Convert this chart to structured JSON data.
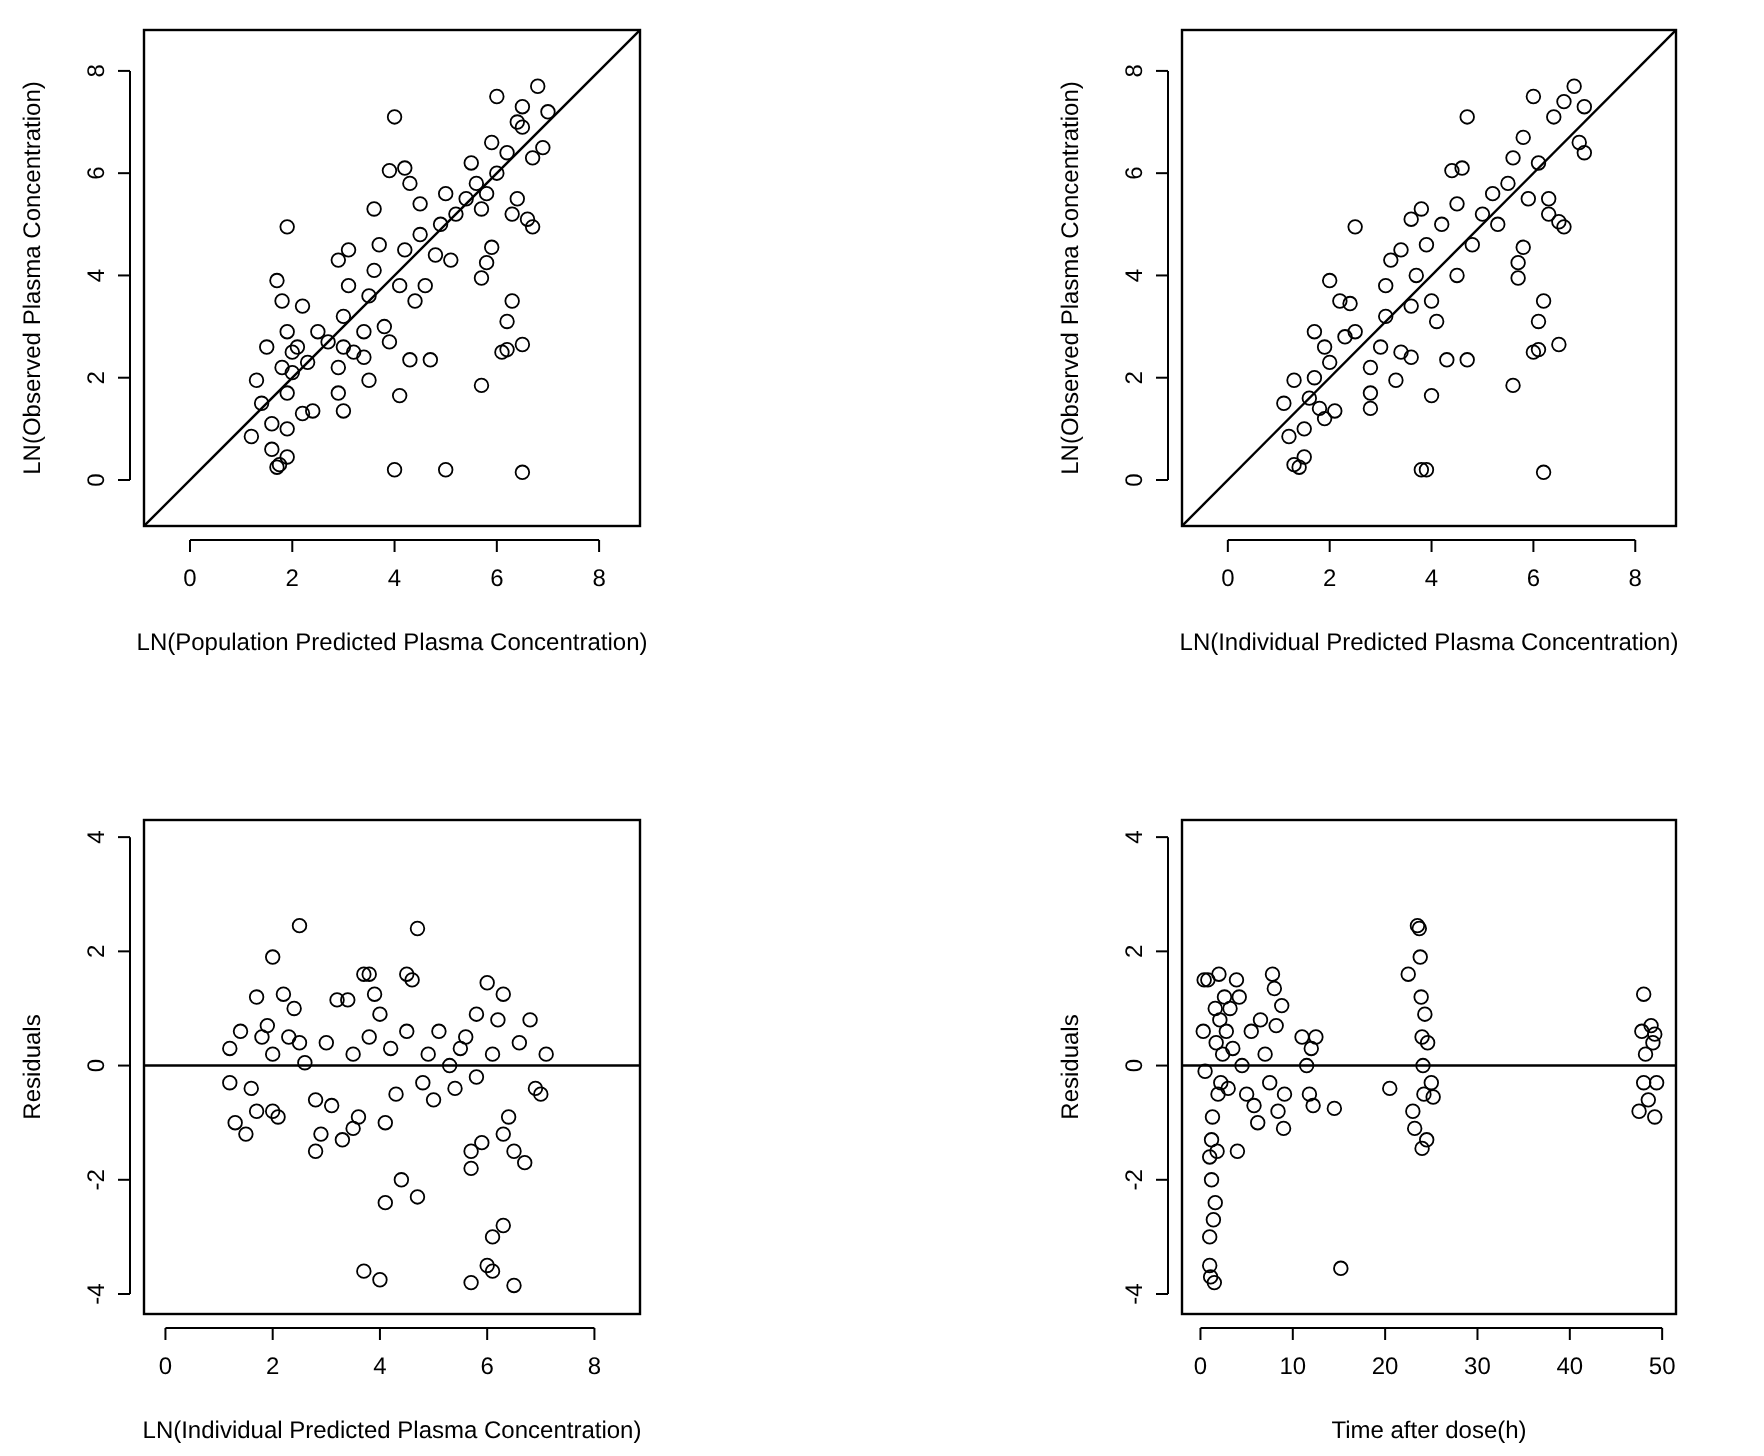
{
  "chart_data": [
    {
      "type": "scatter",
      "xlabel": "LN(Population Predicted Plasma Concentration)",
      "ylabel": "LN(Observed Plasma Concentration)",
      "xlim": [
        -0.9,
        8.8
      ],
      "ylim": [
        -0.9,
        8.8
      ],
      "xticks": [
        0,
        2,
        4,
        6,
        8
      ],
      "yticks": [
        0,
        2,
        4,
        6,
        8
      ],
      "series": [
        {
          "marker": "circle",
          "color": "#000000",
          "x": [
            1.2,
            1.3,
            1.4,
            1.5,
            1.6,
            1.6,
            1.7,
            1.75,
            1.7,
            1.8,
            1.9,
            1.8,
            1.9,
            2.0,
            1.9,
            1.9,
            1.9,
            2.0,
            2.1,
            2.2,
            2.2,
            2.4,
            2.3,
            2.5,
            2.7,
            2.9,
            2.9,
            3.0,
            3.0,
            2.9,
            3.1,
            3.1,
            3.0,
            3.2,
            3.4,
            3.4,
            3.5,
            3.5,
            3.6,
            3.6,
            3.7,
            3.8,
            3.9,
            3.9,
            4.0,
            4.0,
            4.1,
            4.1,
            4.2,
            4.3,
            4.2,
            4.3,
            4.4,
            4.5,
            4.5,
            4.6,
            4.7,
            4.8,
            4.9,
            5.0,
            5.0,
            5.1,
            5.2,
            5.4,
            5.5,
            5.6,
            5.7,
            5.7,
            5.7,
            5.8,
            5.9,
            5.9,
            6.0,
            6.0,
            6.1,
            6.2,
            6.2,
            6.3,
            6.3,
            6.4,
            6.5,
            6.5,
            6.5,
            6.6,
            6.7,
            6.5,
            6.8,
            6.9,
            7.0,
            6.2,
            5.8,
            6.4,
            6.7
          ],
          "values": [
            0.85,
            1.95,
            1.5,
            2.6,
            1.1,
            0.6,
            0.25,
            0.3,
            3.9,
            3.5,
            4.95,
            2.2,
            2.9,
            2.5,
            1.7,
            1.0,
            0.45,
            2.1,
            2.6,
            3.4,
            1.3,
            1.35,
            2.3,
            2.9,
            2.7,
            2.2,
            1.7,
            1.35,
            3.2,
            4.3,
            4.5,
            3.8,
            2.6,
            2.5,
            2.9,
            2.4,
            1.95,
            3.6,
            4.1,
            5.3,
            4.6,
            3.0,
            2.7,
            6.05,
            7.1,
            0.2,
            1.65,
            3.8,
            6.1,
            5.8,
            4.5,
            2.35,
            3.5,
            5.4,
            4.8,
            3.8,
            2.35,
            4.4,
            5.0,
            0.2,
            5.6,
            4.3,
            5.2,
            5.5,
            6.2,
            5.8,
            5.3,
            1.85,
            3.95,
            4.25,
            4.55,
            6.6,
            7.5,
            6.0,
            2.5,
            2.55,
            3.1,
            3.5,
            5.2,
            5.5,
            2.65,
            0.15,
            6.9,
            5.1,
            4.95,
            7.3,
            7.7,
            6.5,
            7.2,
            6.4,
            5.6,
            7.0,
            6.3
          ]
        },
        {
          "type": "line",
          "color": "#000000",
          "x": [
            -0.9,
            8.8
          ],
          "values": [
            -0.9,
            8.8
          ]
        }
      ]
    },
    {
      "type": "scatter",
      "xlabel": "LN(Individual Predicted Plasma Concentration)",
      "ylabel": "LN(Observed Plasma Concentration)",
      "xlim": [
        -0.9,
        8.8
      ],
      "ylim": [
        -0.9,
        8.8
      ],
      "xticks": [
        0,
        2,
        4,
        6,
        8
      ],
      "yticks": [
        0,
        2,
        4,
        6,
        8
      ],
      "series": [
        {
          "marker": "circle",
          "color": "#000000",
          "x": [
            1.1,
            1.2,
            1.3,
            1.3,
            1.4,
            1.5,
            1.5,
            1.6,
            1.7,
            1.7,
            1.8,
            1.9,
            1.9,
            2.0,
            2.0,
            2.1,
            2.2,
            2.4,
            2.5,
            2.3,
            2.5,
            2.8,
            2.8,
            2.8,
            3.0,
            3.1,
            3.1,
            3.2,
            3.3,
            3.4,
            3.4,
            3.6,
            3.6,
            3.7,
            3.6,
            3.8,
            3.8,
            3.9,
            3.9,
            4.0,
            4.0,
            4.1,
            4.2,
            4.3,
            4.4,
            4.5,
            4.5,
            4.6,
            4.7,
            4.7,
            4.8,
            5.0,
            5.2,
            5.3,
            5.5,
            5.6,
            5.7,
            5.7,
            5.8,
            5.6,
            5.8,
            6.0,
            6.1,
            6.0,
            6.1,
            6.2,
            6.2,
            6.3,
            6.3,
            6.5,
            6.5,
            6.6,
            6.4,
            6.8,
            6.9,
            7.0,
            7.0,
            6.1,
            5.9,
            6.6
          ],
          "values": [
            1.5,
            0.85,
            1.95,
            0.3,
            0.25,
            0.45,
            1.0,
            1.6,
            2.0,
            2.9,
            1.4,
            2.6,
            1.2,
            3.9,
            2.3,
            1.35,
            3.5,
            3.45,
            4.95,
            2.8,
            2.9,
            1.4,
            1.7,
            2.2,
            2.6,
            3.2,
            3.8,
            4.3,
            1.95,
            4.5,
            2.5,
            3.4,
            2.4,
            4.0,
            5.1,
            5.3,
            0.2,
            0.2,
            4.6,
            3.5,
            1.65,
            3.1,
            5.0,
            2.35,
            6.05,
            5.4,
            4.0,
            6.1,
            2.35,
            7.1,
            4.6,
            5.2,
            5.6,
            5.0,
            5.8,
            1.85,
            3.95,
            4.25,
            4.55,
            6.3,
            6.7,
            2.5,
            2.55,
            7.5,
            3.1,
            3.5,
            0.15,
            5.2,
            5.5,
            2.65,
            5.05,
            4.95,
            7.1,
            7.7,
            6.6,
            7.3,
            6.4,
            6.2,
            5.5,
            7.4
          ]
        },
        {
          "type": "line",
          "color": "#000000",
          "x": [
            -0.9,
            8.8
          ],
          "values": [
            -0.9,
            8.8
          ]
        }
      ]
    },
    {
      "type": "scatter",
      "xlabel": "LN(Individual Predicted Plasma Concentration)",
      "ylabel": "Residuals",
      "xlim": [
        -0.4,
        8.85
      ],
      "ylim": [
        -4.35,
        4.3
      ],
      "xticks": [
        0,
        2,
        4,
        6,
        8
      ],
      "yticks": [
        -4,
        -2,
        0,
        2,
        4
      ],
      "marker": "circle",
      "ref_lines": [
        {
          "axis": "y",
          "value": 0,
          "color": "#000000"
        }
      ],
      "series": [
        {
          "color": "#000000",
          "x": [
            1.2,
            1.2,
            1.3,
            1.4,
            1.5,
            1.6,
            1.7,
            1.7,
            1.8,
            1.9,
            2.0,
            2.0,
            2.0,
            2.1,
            2.2,
            2.3,
            2.5,
            2.4,
            2.5,
            2.6,
            2.8,
            2.8,
            2.9,
            3.0,
            3.1,
            3.2,
            3.3,
            3.4,
            3.5,
            3.5,
            3.6,
            3.7,
            3.8,
            3.7,
            3.8,
            3.9,
            4.0,
            4.0,
            4.1,
            4.1,
            4.2,
            4.3,
            4.4,
            4.5,
            4.6,
            4.5,
            4.7,
            4.7,
            4.8,
            4.9,
            5.0,
            5.1,
            5.3,
            5.4,
            5.6,
            5.7,
            5.7,
            5.7,
            5.8,
            5.9,
            6.0,
            6.0,
            6.1,
            6.1,
            6.2,
            6.3,
            6.3,
            6.3,
            6.4,
            6.5,
            6.5,
            6.6,
            6.7,
            6.8,
            6.9,
            7.0,
            7.1,
            5.8,
            6.1,
            5.5
          ],
          "values": [
            0.3,
            -0.3,
            -1.0,
            0.6,
            -1.2,
            -0.4,
            -0.8,
            1.2,
            0.5,
            0.7,
            1.9,
            0.2,
            -0.8,
            -0.9,
            1.25,
            0.5,
            2.45,
            1.0,
            0.4,
            0.05,
            -0.6,
            -1.5,
            -1.2,
            0.4,
            -0.7,
            1.15,
            -1.3,
            1.15,
            -1.1,
            0.2,
            -0.9,
            1.6,
            1.6,
            -3.6,
            0.5,
            1.25,
            -3.75,
            0.9,
            -1.0,
            -2.4,
            0.3,
            -0.5,
            -2.0,
            1.6,
            1.5,
            0.6,
            2.4,
            -2.3,
            -0.3,
            0.2,
            -0.6,
            0.6,
            0.0,
            -0.4,
            0.5,
            -1.5,
            -1.8,
            -3.8,
            -0.2,
            -1.35,
            1.45,
            -3.5,
            -3.6,
            -3.0,
            0.8,
            -2.8,
            1.25,
            -1.2,
            -0.9,
            -3.85,
            -1.5,
            0.4,
            -1.7,
            0.8,
            -0.4,
            -0.5,
            0.2,
            0.9,
            0.2,
            0.3
          ]
        }
      ]
    },
    {
      "type": "scatter",
      "xlabel": "Time after dose(h)",
      "ylabel": "Residuals",
      "xlim": [
        -2,
        51.5
      ],
      "ylim": [
        -4.35,
        4.3
      ],
      "xticks": [
        0,
        10,
        20,
        30,
        40,
        50
      ],
      "yticks": [
        -4,
        -2,
        0,
        2,
        4
      ],
      "marker": "circle",
      "ref_lines": [
        {
          "axis": "y",
          "value": 0,
          "color": "#000000"
        }
      ],
      "series": [
        {
          "color": "#000000",
          "x": [
            0.3,
            0.4,
            0.5,
            0.8,
            1.0,
            1.0,
            1.0,
            1.1,
            1.2,
            1.2,
            1.3,
            1.4,
            1.5,
            1.6,
            1.6,
            1.7,
            1.8,
            1.9,
            2.0,
            2.1,
            2.2,
            2.4,
            2.6,
            2.8,
            3.0,
            3.2,
            3.5,
            3.9,
            4.0,
            4.2,
            4.5,
            5.0,
            5.5,
            5.8,
            6.2,
            6.5,
            7.0,
            7.5,
            7.8,
            8.0,
            8.2,
            8.4,
            8.8,
            9.0,
            9.1,
            11.0,
            11.5,
            11.8,
            12.0,
            12.2,
            12.5,
            14.5,
            15.2,
            20.5,
            22.5,
            23.0,
            23.2,
            23.5,
            23.7,
            23.8,
            23.9,
            24.0,
            24.0,
            24.1,
            24.2,
            24.3,
            24.5,
            24.6,
            25.0,
            25.2,
            47.5,
            47.8,
            48.0,
            48.0,
            48.2,
            48.5,
            48.8,
            49.0,
            49.2,
            49.4,
            49.2
          ],
          "values": [
            0.6,
            1.5,
            -0.1,
            1.5,
            -1.6,
            -3.0,
            -3.5,
            -3.7,
            -2.0,
            -1.3,
            -0.9,
            -2.7,
            -3.8,
            -2.4,
            1.0,
            0.4,
            -1.5,
            -0.5,
            1.6,
            0.8,
            -0.3,
            0.2,
            1.2,
            0.6,
            -0.4,
            1.0,
            0.3,
            1.5,
            -1.5,
            1.2,
            0.0,
            -0.5,
            0.6,
            -0.7,
            -1.0,
            0.8,
            0.2,
            -0.3,
            1.6,
            1.35,
            0.7,
            -0.8,
            1.05,
            -1.1,
            -0.5,
            0.5,
            0.0,
            -0.5,
            0.3,
            -0.7,
            0.5,
            -0.75,
            -3.55,
            -0.4,
            1.6,
            -0.8,
            -1.1,
            2.45,
            2.4,
            1.9,
            1.2,
            -1.45,
            0.5,
            0.0,
            -0.5,
            0.9,
            -1.3,
            0.4,
            -0.3,
            -0.55,
            -0.8,
            0.6,
            1.25,
            -0.3,
            0.2,
            -0.6,
            0.7,
            0.4,
            0.55,
            -0.3,
            -0.9
          ]
        }
      ]
    }
  ]
}
